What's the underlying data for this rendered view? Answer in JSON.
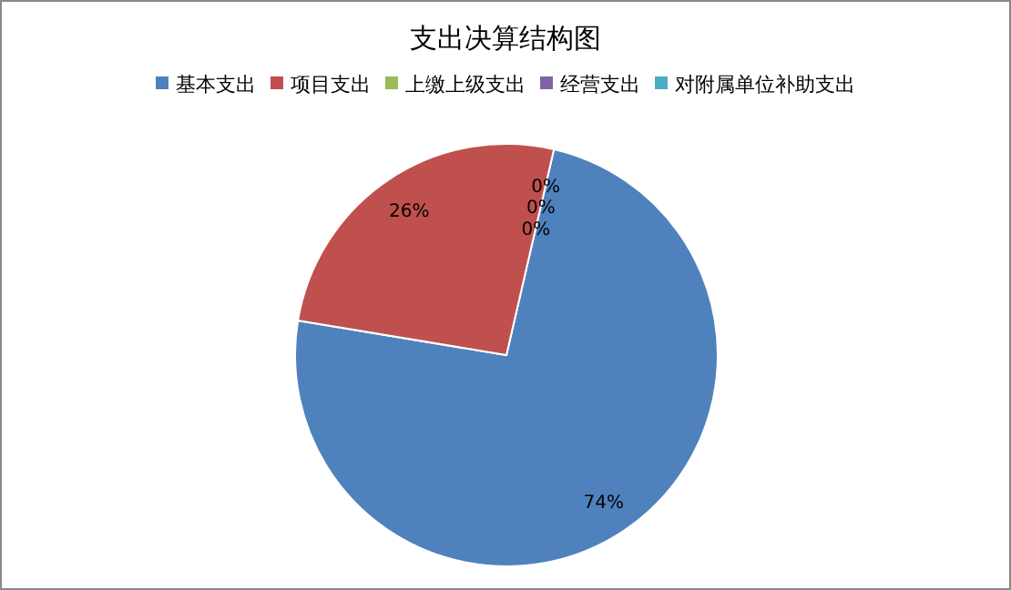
{
  "chart_data": {
    "type": "pie",
    "title": "支出决算结构图",
    "categories": [
      "基本支出",
      "项目支出",
      "上缴上级支出",
      "经营支出",
      "对附属单位补助支出"
    ],
    "values": [
      74,
      26,
      0,
      0,
      0
    ],
    "colors": [
      "#4f81bd",
      "#c0504d",
      "#9bbb59",
      "#8064a2",
      "#4bacc6"
    ],
    "value_labels": [
      "74%",
      "26%",
      "0%",
      "0%",
      "0%"
    ],
    "legend": "top"
  }
}
